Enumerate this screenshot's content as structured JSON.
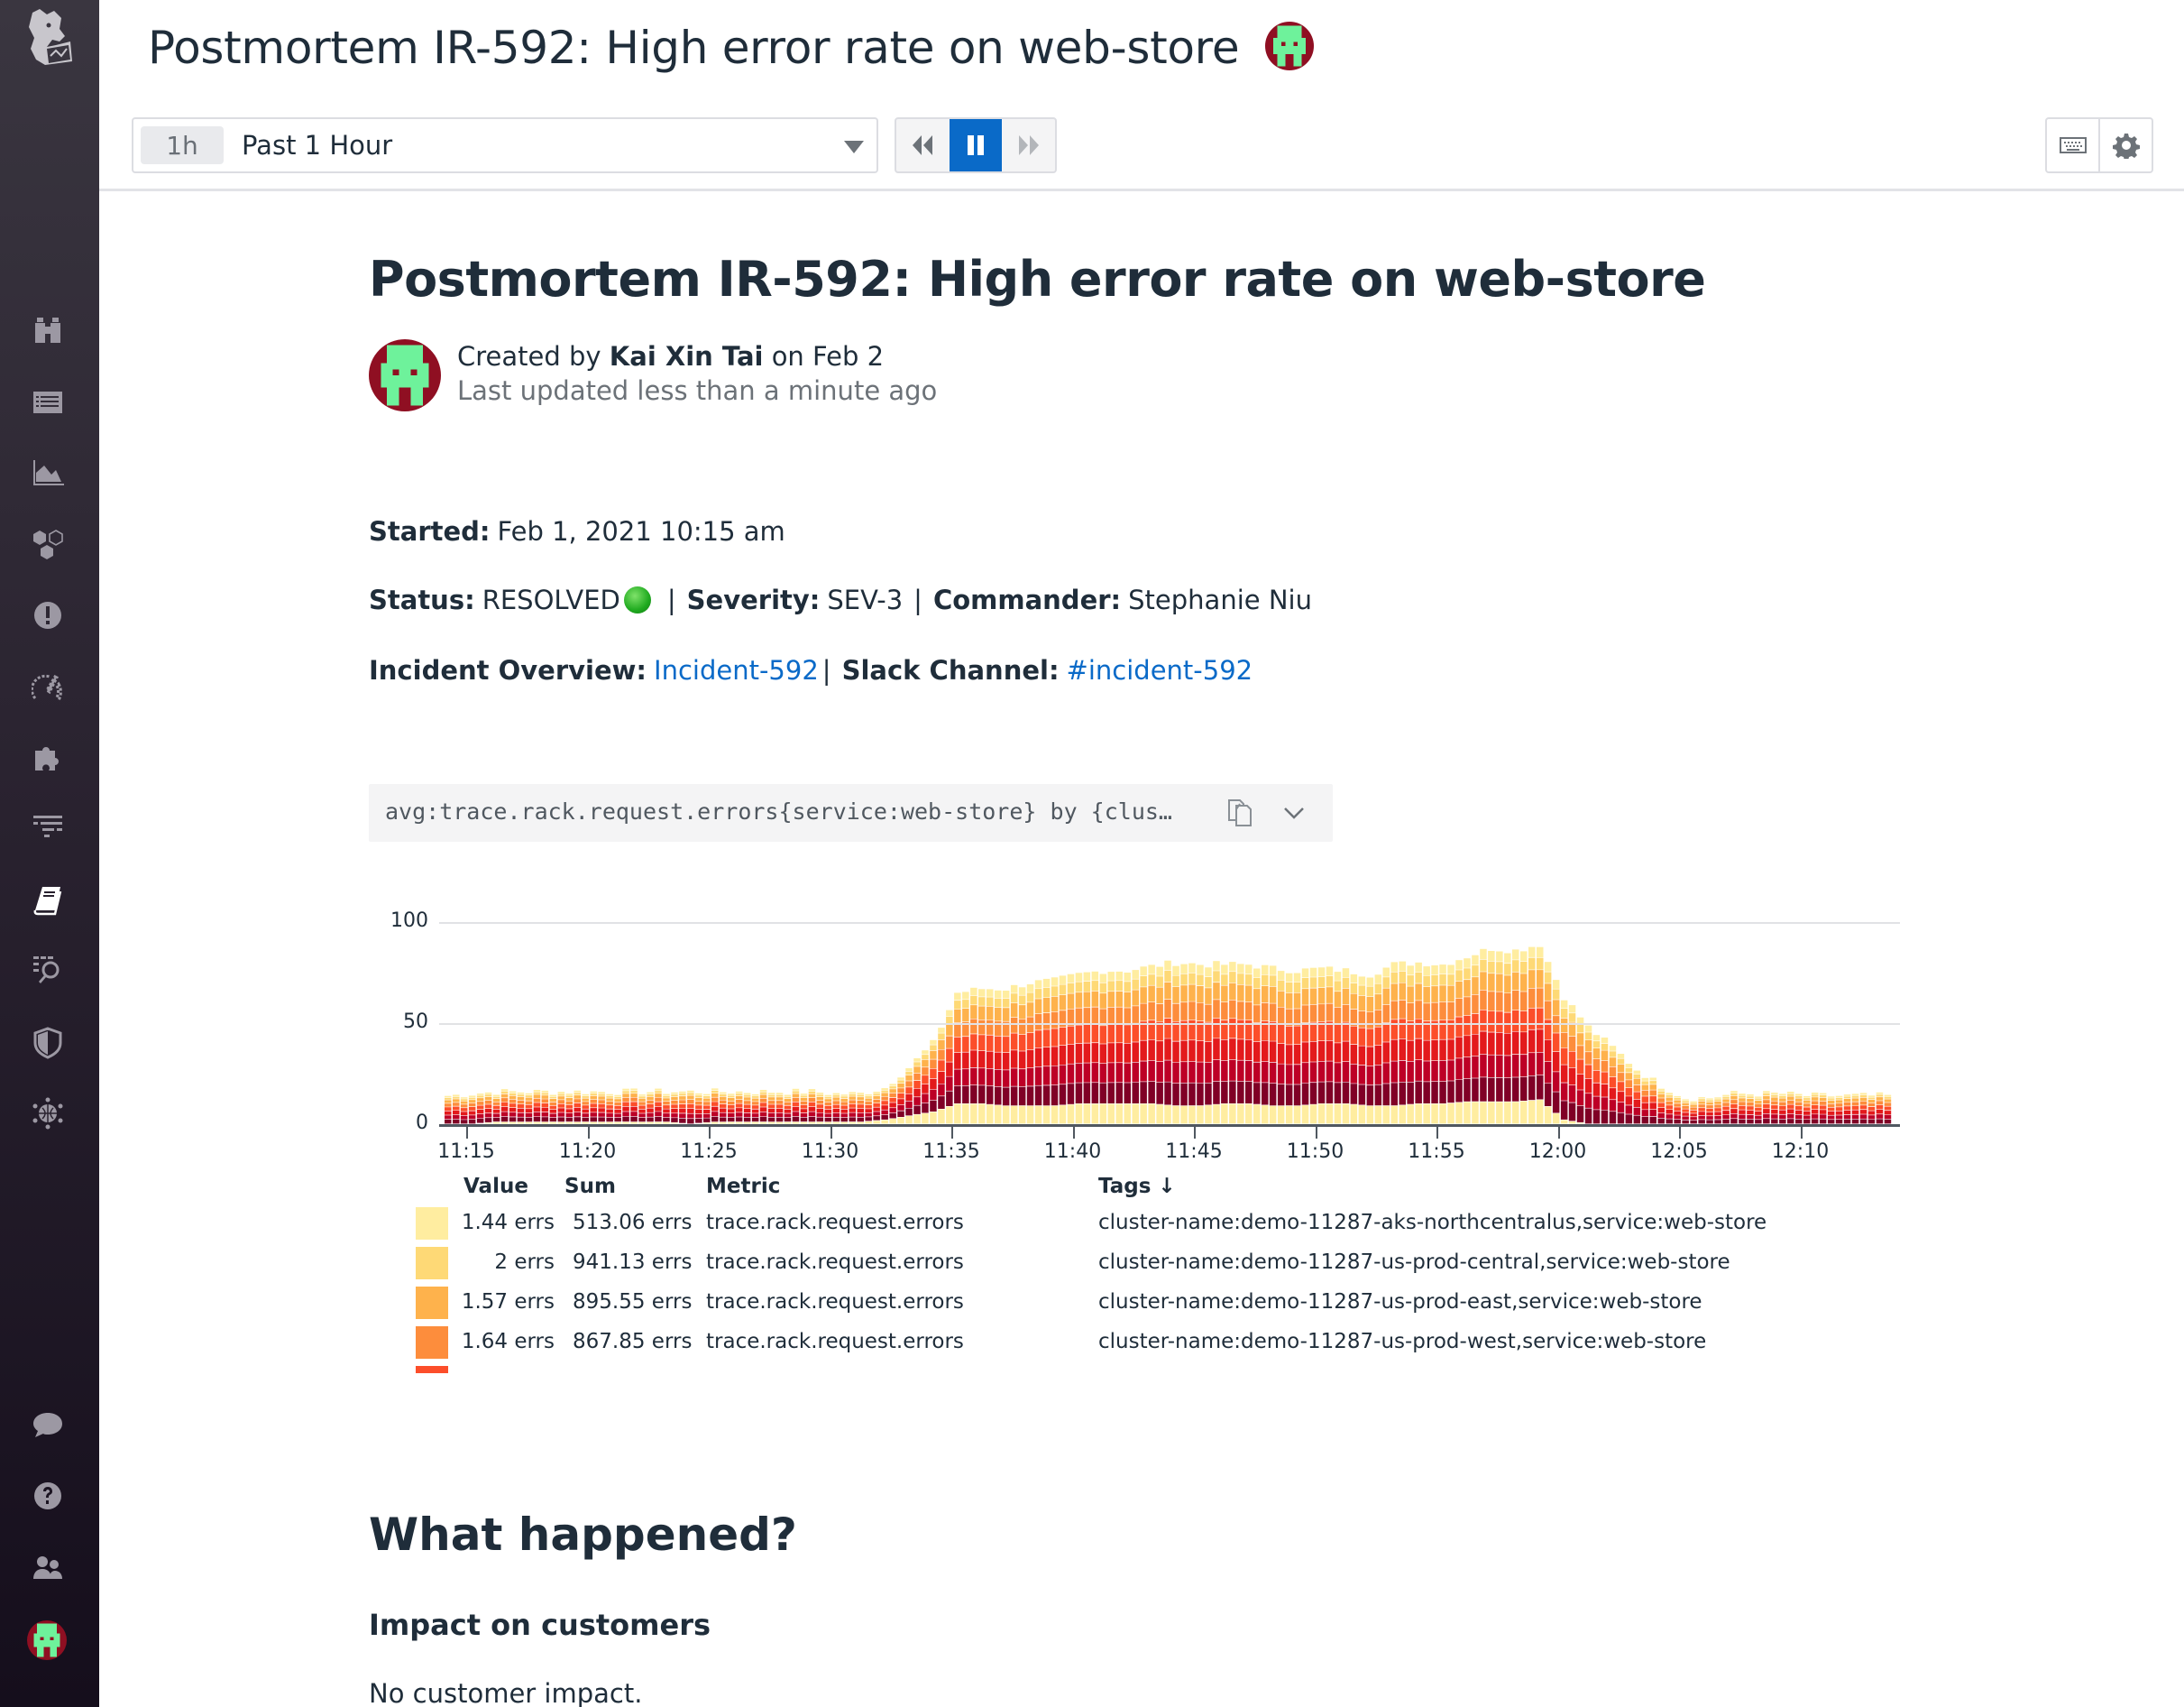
{
  "header": {
    "title": "Postmortem IR-592: High error rate on web-store",
    "time_picker": {
      "chip": "1h",
      "label": "Past 1 Hour"
    }
  },
  "sidebar": {
    "items": [
      {
        "name": "logo-icon"
      },
      {
        "name": "binoculars-icon"
      },
      {
        "name": "list-icon"
      },
      {
        "name": "area-chart-icon"
      },
      {
        "name": "hexagons-icon"
      },
      {
        "name": "alert-icon"
      },
      {
        "name": "speedometer-icon"
      },
      {
        "name": "puzzle-icon"
      },
      {
        "name": "filter-list-icon"
      },
      {
        "name": "notebook-icon",
        "active": true
      },
      {
        "name": "log-search-icon"
      },
      {
        "name": "shield-icon"
      },
      {
        "name": "network-globe-icon"
      },
      {
        "name": "chat-icon"
      },
      {
        "name": "help-icon"
      },
      {
        "name": "team-icon"
      },
      {
        "name": "user-avatar"
      }
    ]
  },
  "doc": {
    "title": "Postmortem IR-592: High error rate on web-store",
    "author": {
      "prefix": "Created by",
      "name": "Kai Xin Tai",
      "date_prefix": "on",
      "date": "Feb 2",
      "updated": "Last updated less than a minute ago"
    },
    "started": {
      "label": "Started:",
      "value": "Feb 1, 2021 10:15 am"
    },
    "status": {
      "label": "Status:",
      "value": "RESOLVED"
    },
    "severity": {
      "label": "Severity:",
      "value": "SEV-3"
    },
    "commander": {
      "label": "Commander:",
      "value": "Stephanie Niu"
    },
    "overview": {
      "label": "Incident Overview:",
      "link": "Incident-592"
    },
    "slack": {
      "label": "Slack Channel:",
      "link": "#incident-592"
    },
    "separator": "|",
    "query": "avg:trace.rack.request.errors{service:web-store} by {clus…",
    "section_heading": "What happened?",
    "subheading": "Impact on customers",
    "paragraph": "No customer impact."
  },
  "legend": {
    "headers": {
      "value": "Value",
      "sum": "Sum",
      "metric": "Metric",
      "tags": "Tags ↓"
    },
    "rows": [
      {
        "color": "#ffeda0",
        "value": "1.44 errs",
        "sum": "513.06 errs",
        "metric": "trace.rack.request.errors",
        "tags": "cluster-name:demo-11287-aks-northcentralus,service:web-store"
      },
      {
        "color": "#fed976",
        "value": "2 errs",
        "sum": "941.13 errs",
        "metric": "trace.rack.request.errors",
        "tags": "cluster-name:demo-11287-us-prod-central,service:web-store"
      },
      {
        "color": "#feb24c",
        "value": "1.57 errs",
        "sum": "895.55 errs",
        "metric": "trace.rack.request.errors",
        "tags": "cluster-name:demo-11287-us-prod-east,service:web-store"
      },
      {
        "color": "#fd8d3c",
        "value": "1.64 errs",
        "sum": "867.85 errs",
        "metric": "trace.rack.request.errors",
        "tags": "cluster-name:demo-11287-us-prod-west,service:web-store"
      }
    ]
  },
  "chart_data": {
    "type": "bar",
    "stacked": true,
    "title": "avg:trace.rack.request.errors{service:web-store} by {cluster-name}",
    "xlabel": "",
    "ylabel": "",
    "ylim": [
      0,
      100
    ],
    "yticks": [
      0,
      50,
      100
    ],
    "grid": true,
    "x_ticks": [
      "11:15",
      "11:20",
      "11:25",
      "11:30",
      "11:35",
      "11:40",
      "11:45",
      "11:50",
      "11:55",
      "12:00",
      "12:05",
      "12:10"
    ],
    "x_range": [
      "11:14",
      "12:13:40"
    ],
    "interval_seconds": 20,
    "series_colors_bottom_to_top": [
      "#ffeda0",
      "#800026",
      "#bd0026",
      "#e31a1c",
      "#fc4e2a",
      "#fd8d3c",
      "#feb24c",
      "#fed976",
      "#ffeda0"
    ],
    "total_by_minute": {
      "x": [
        "11:14",
        "11:15",
        "11:16",
        "11:17",
        "11:18",
        "11:19",
        "11:20",
        "11:21",
        "11:22",
        "11:23",
        "11:24",
        "11:25",
        "11:26",
        "11:27",
        "11:28",
        "11:29",
        "11:30",
        "11:31",
        "11:32",
        "11:33",
        "11:34",
        "11:35",
        "11:36",
        "11:37",
        "11:38",
        "11:39",
        "11:40",
        "11:41",
        "11:42",
        "11:43",
        "11:44",
        "11:45",
        "11:46",
        "11:47",
        "11:48",
        "11:49",
        "11:50",
        "11:51",
        "11:52",
        "11:53",
        "11:54",
        "11:55",
        "11:56",
        "11:57",
        "11:58",
        "11:59",
        "12:00",
        "12:01",
        "12:02",
        "12:03",
        "12:04",
        "12:05",
        "12:06",
        "12:07",
        "12:08",
        "12:09",
        "12:10",
        "12:11",
        "12:12",
        "12:13"
      ],
      "values": [
        14,
        15,
        16,
        16,
        16,
        16,
        16,
        16,
        16,
        16,
        16,
        16,
        16,
        16,
        16,
        16,
        15,
        15,
        18,
        28,
        40,
        65,
        67,
        67,
        70,
        71,
        74,
        76,
        76,
        78,
        80,
        79,
        79,
        79,
        77,
        76,
        77,
        76,
        74,
        79,
        80,
        79,
        83,
        87,
        86,
        89,
        63,
        48,
        38,
        27,
        19,
        13,
        13,
        15,
        15,
        15,
        14,
        14,
        14,
        14
      ],
      "baseline_series_share": [
        0,
        0,
        1,
        1,
        1,
        1,
        1,
        1,
        1,
        1,
        0,
        1,
        1,
        1,
        1,
        1,
        1,
        1,
        2,
        4,
        6,
        10,
        10,
        9,
        9,
        9,
        10,
        10,
        10,
        10,
        9,
        9,
        10,
        10,
        9,
        9,
        10,
        10,
        9,
        9,
        10,
        10,
        11,
        11,
        11,
        12,
        2,
        0,
        0,
        0,
        0,
        0,
        0,
        0,
        0,
        0,
        0,
        0,
        0,
        0
      ]
    },
    "legend": [
      {
        "name": "cluster-name:demo-11287-aks-northcentralus,service:web-store",
        "value": 1.44,
        "sum": 513.06
      },
      {
        "name": "cluster-name:demo-11287-us-prod-central,service:web-store",
        "value": 2,
        "sum": 941.13
      },
      {
        "name": "cluster-name:demo-11287-us-prod-east,service:web-store",
        "value": 1.57,
        "sum": 895.55
      },
      {
        "name": "cluster-name:demo-11287-us-prod-west,service:web-store",
        "value": 1.64,
        "sum": 867.85
      }
    ]
  }
}
